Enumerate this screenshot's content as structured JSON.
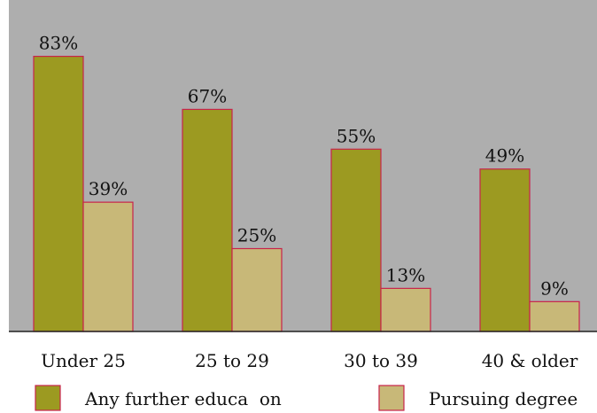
{
  "chart_data": {
    "type": "bar",
    "categories": [
      "Under 25",
      "25 to 29",
      "30 to 39",
      "40 & older"
    ],
    "series": [
      {
        "name": "Any further educa  on",
        "values": [
          83,
          67,
          55,
          49
        ],
        "labels": [
          "83%",
          "67%",
          "55%",
          "49%"
        ],
        "color": "#9c9a21"
      },
      {
        "name": "Pursuing degree",
        "values": [
          39,
          25,
          13,
          9
        ],
        "labels": [
          "39%",
          "25%",
          "13%",
          "9%"
        ],
        "color": "#c8b878"
      }
    ],
    "ylim": [
      0,
      100
    ],
    "grid": false,
    "legend_position": "bottom",
    "title": "",
    "xlabel": "",
    "ylabel": "",
    "colors": {
      "plot_background": "#aeaeae",
      "bar_outline": "#c8234a",
      "axis": "#222222"
    }
  }
}
